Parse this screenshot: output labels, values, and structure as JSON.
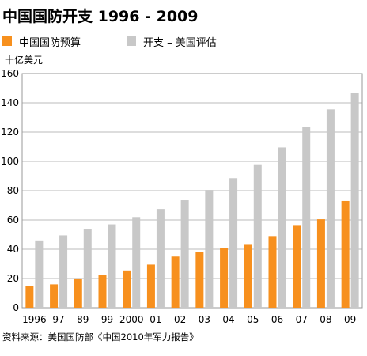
{
  "chart_data": {
    "type": "bar",
    "title": "中国国防开支 1996 - 2009",
    "ylabel": "十亿美元",
    "xlabel": "",
    "ylim": [
      0,
      160
    ],
    "yticks": [
      0,
      20,
      40,
      60,
      80,
      100,
      120,
      140,
      160
    ],
    "grid": true,
    "legend_position": "top",
    "categories": [
      "1996",
      "97",
      "89",
      "99",
      "2000",
      "01",
      "02",
      "03",
      "04",
      "05",
      "06",
      "07",
      "08",
      "09"
    ],
    "series": [
      {
        "name": "中国国防预算",
        "color": "#f7901e",
        "values": [
          15,
          16,
          19.5,
          22.5,
          25.5,
          29.5,
          35,
          38,
          41,
          43,
          49,
          56,
          60.5,
          73
        ]
      },
      {
        "name": "开支 – 美国评估",
        "color": "#c8c8c8",
        "values": [
          45.5,
          49.5,
          53.5,
          57,
          62,
          67.5,
          73.5,
          80.5,
          88.5,
          98,
          109.5,
          123.5,
          135.5,
          146.5
        ]
      }
    ],
    "source": "资料来源：美国国防部《中国2010年军力报告》"
  },
  "colors": {
    "grid": "#bbbbbb",
    "axis_frame": "#999999"
  }
}
